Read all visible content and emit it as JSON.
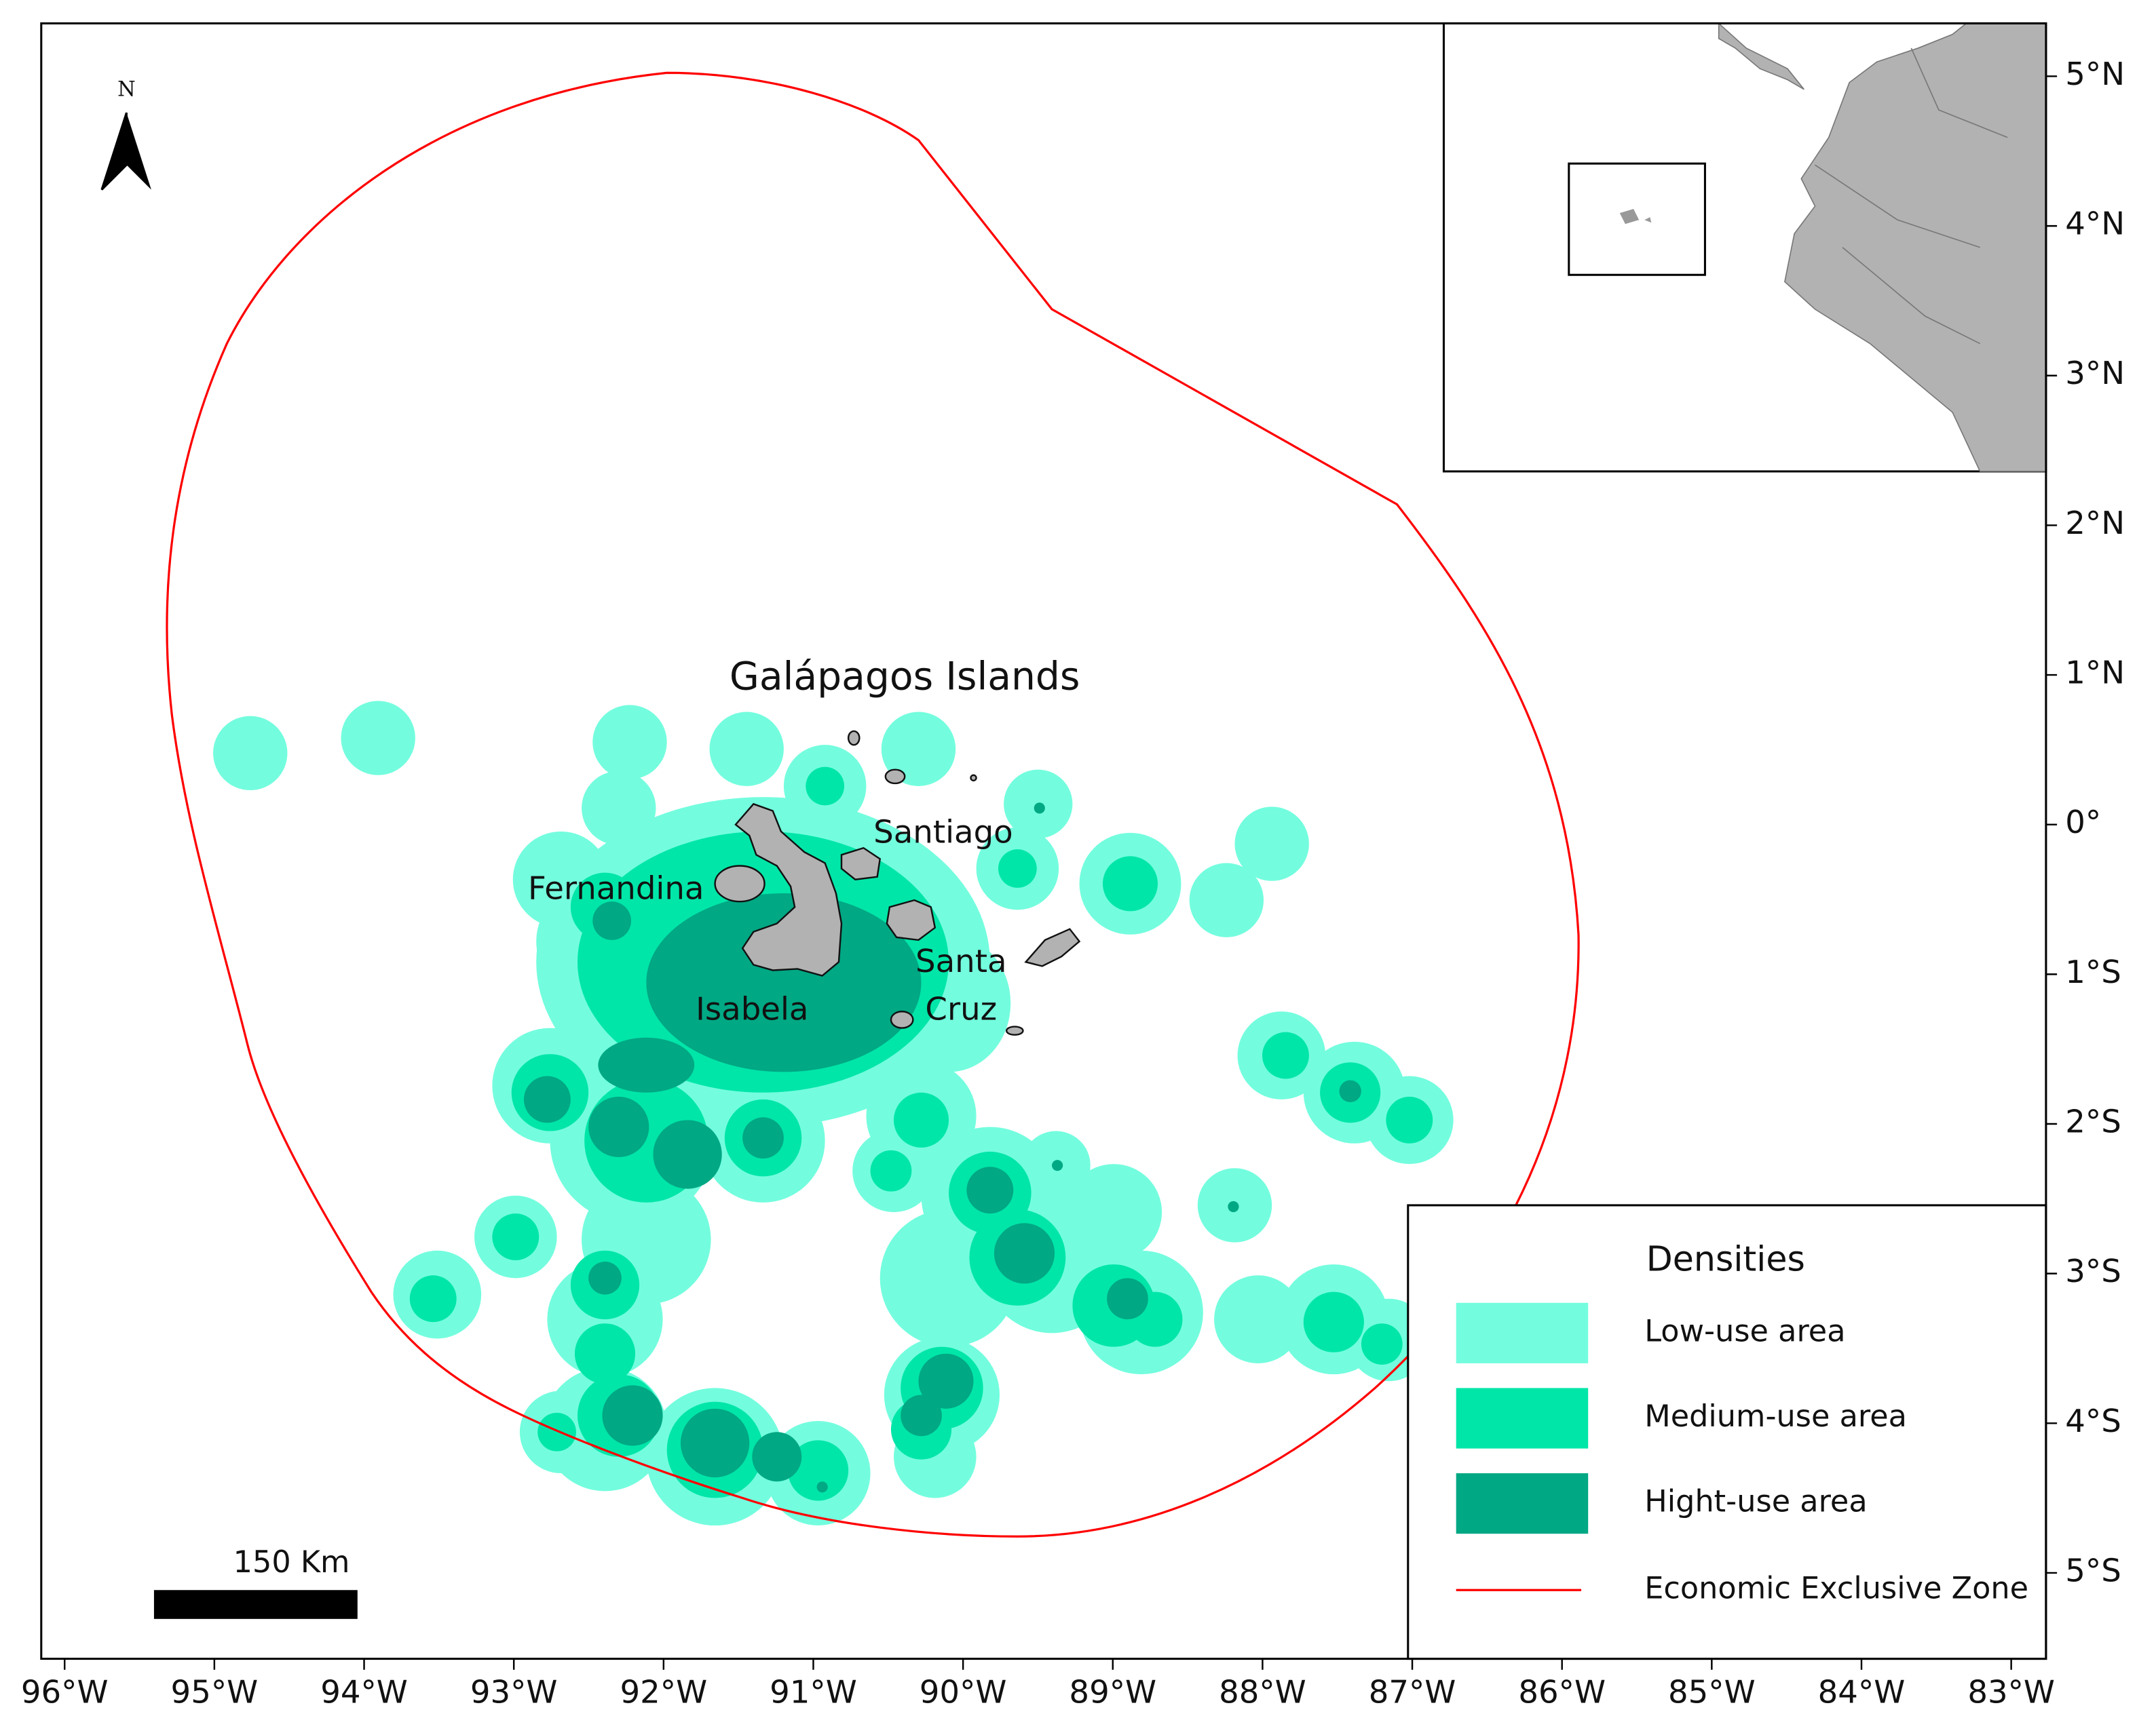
{
  "title": "Galápagos Islands",
  "north": "N",
  "scale_bar": "150 Km",
  "islands": [
    "Santiago",
    "Fernandina",
    "Santa",
    "Cruz",
    "Isabela"
  ],
  "legend": {
    "title": "Densities",
    "items": [
      {
        "label": "Low-use area",
        "color": "#73fdde"
      },
      {
        "label": "Medium-use area",
        "color": "#00e6a8"
      },
      {
        "label": "Hight-use area",
        "color": "#00a884"
      },
      {
        "label": "Economic Exclusive Zone",
        "color": "#ff0000"
      }
    ]
  },
  "x_ticks": [
    {
      "value": -96,
      "label": "96°W"
    },
    {
      "value": -95,
      "label": "95°W"
    },
    {
      "value": -94,
      "label": "94°W"
    },
    {
      "value": -93,
      "label": "93°W"
    },
    {
      "value": -92,
      "label": "92°W"
    },
    {
      "value": -91,
      "label": "91°W"
    },
    {
      "value": -90,
      "label": "90°W"
    },
    {
      "value": -89,
      "label": "89°W"
    },
    {
      "value": -88,
      "label": "88°W"
    },
    {
      "value": -87,
      "label": "87°W"
    },
    {
      "value": -86,
      "label": "86°W"
    },
    {
      "value": -85,
      "label": "85°W"
    },
    {
      "value": -84,
      "label": "84°W"
    },
    {
      "value": -83,
      "label": "83°W"
    }
  ],
  "y_ticks": [
    {
      "value": 5,
      "label": "5°N"
    },
    {
      "value": 4,
      "label": "4°N"
    },
    {
      "value": 3,
      "label": "3°N"
    },
    {
      "value": 2,
      "label": "2°N"
    },
    {
      "value": 1,
      "label": "1°N"
    },
    {
      "value": 0,
      "label": "0°"
    },
    {
      "value": -1,
      "label": "1°S"
    },
    {
      "value": -2,
      "label": "2°S"
    },
    {
      "value": -3,
      "label": "3°S"
    },
    {
      "value": -4,
      "label": "4°S"
    },
    {
      "value": -5,
      "label": "5°S"
    }
  ]
}
